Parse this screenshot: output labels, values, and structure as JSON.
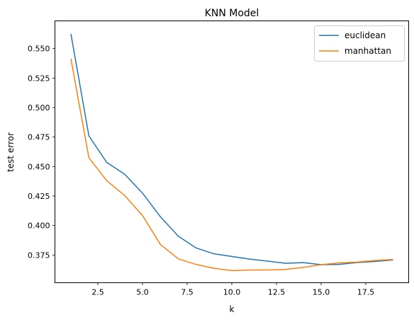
{
  "chart_data": {
    "type": "line",
    "title": "KNN Model",
    "xlabel": "k",
    "ylabel": "test error",
    "xlim": [
      0.1,
      19.9
    ],
    "ylim": [
      0.3515,
      0.5735
    ],
    "x_ticks": [
      2.5,
      5.0,
      7.5,
      10.0,
      12.5,
      15.0,
      17.5
    ],
    "x_tick_labels": [
      "2.5",
      "5.0",
      "7.5",
      "10.0",
      "12.5",
      "15.0",
      "17.5"
    ],
    "y_ticks": [
      0.375,
      0.4,
      0.425,
      0.45,
      0.475,
      0.5,
      0.525,
      0.55
    ],
    "y_tick_labels": [
      "0.375",
      "0.400",
      "0.425",
      "0.450",
      "0.475",
      "0.500",
      "0.525",
      "0.550"
    ],
    "grid": false,
    "legend_position": "top-right",
    "x": [
      1,
      2,
      3,
      4,
      5,
      6,
      7,
      8,
      9,
      10,
      11,
      12,
      13,
      14,
      15,
      16,
      17,
      18,
      19
    ],
    "series": [
      {
        "name": "euclidean",
        "color": "#1f77b4",
        "values": [
          0.562,
          0.476,
          0.4535,
          0.4435,
          0.4275,
          0.4075,
          0.391,
          0.381,
          0.376,
          0.3738,
          0.3715,
          0.3698,
          0.368,
          0.3685,
          0.3668,
          0.367,
          0.3686,
          0.3695,
          0.3708
        ]
      },
      {
        "name": "manhattan",
        "color": "#ff7f0e",
        "values": [
          0.541,
          0.4575,
          0.438,
          0.4255,
          0.4085,
          0.384,
          0.3718,
          0.367,
          0.3637,
          0.3618,
          0.3623,
          0.3623,
          0.3628,
          0.3645,
          0.3668,
          0.3683,
          0.369,
          0.3703,
          0.3712
        ]
      }
    ]
  }
}
